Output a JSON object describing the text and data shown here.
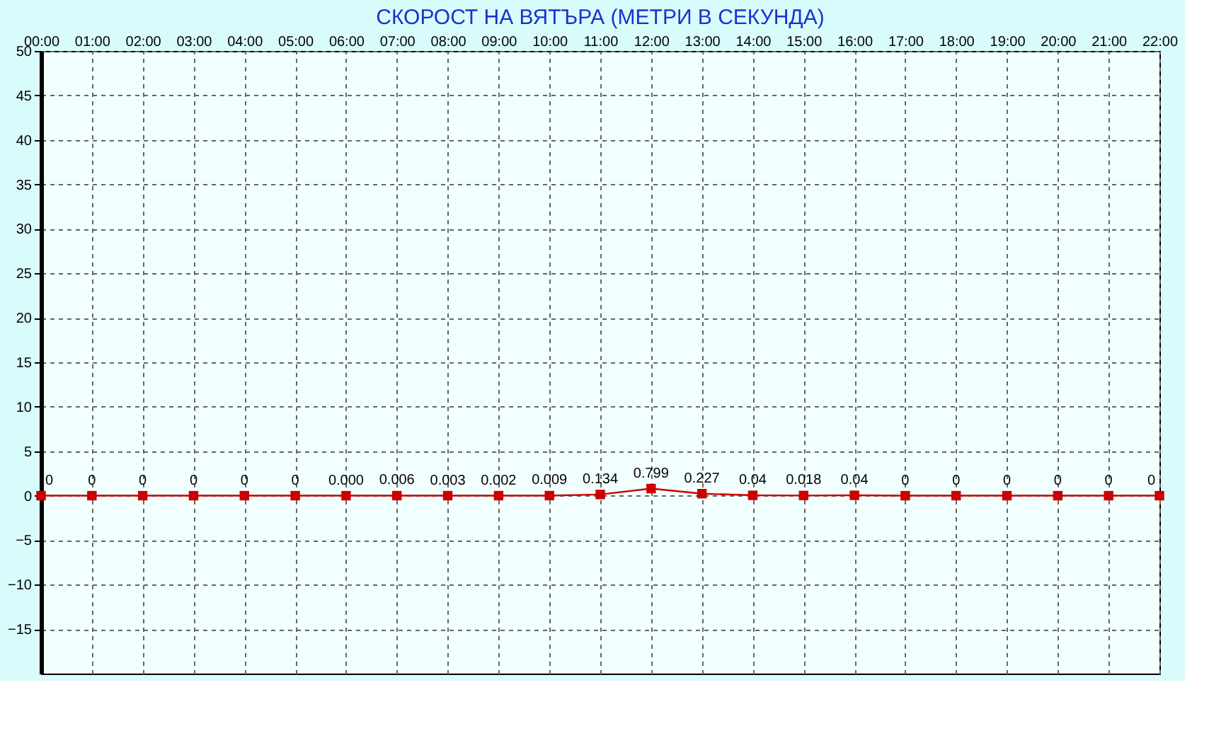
{
  "chart_data": {
    "type": "line",
    "title": "СКОРОСТ НА ВЯТЪРА (МЕТРИ В СЕКУНДА)",
    "categories": [
      "00:00",
      "01:00",
      "02:00",
      "03:00",
      "04:00",
      "05:00",
      "06:00",
      "07:00",
      "08:00",
      "09:00",
      "10:00",
      "11:00",
      "12:00",
      "13:00",
      "14:00",
      "15:00",
      "16:00",
      "17:00",
      "18:00",
      "19:00",
      "20:00",
      "21:00",
      "22:00"
    ],
    "series": [
      {
        "color": "#cc0000",
        "values": [
          0,
          0,
          0,
          0,
          0,
          0,
          0,
          0.006,
          0.003,
          0.002,
          0.009,
          0.134,
          0.799,
          0.227,
          0.04,
          0.018,
          0.04,
          0,
          0,
          0,
          0,
          0,
          0
        ],
        "value_labels": [
          "0",
          "0",
          "0",
          "0",
          "0",
          "0",
          "0.000",
          "0.006",
          "0.003",
          "0.002",
          "0.009",
          "0.134",
          "0.799",
          "0.227",
          "0.04",
          "0.018",
          "0.04",
          "0",
          "0",
          "0",
          "0",
          "0",
          "0"
        ]
      }
    ],
    "ylim": [
      -20,
      50
    ],
    "yticks": [
      -15,
      -10,
      -5,
      0,
      5,
      10,
      15,
      20,
      25,
      30,
      35,
      40,
      45,
      50
    ],
    "grid": true,
    "marker": "square",
    "line_style": "solid"
  }
}
